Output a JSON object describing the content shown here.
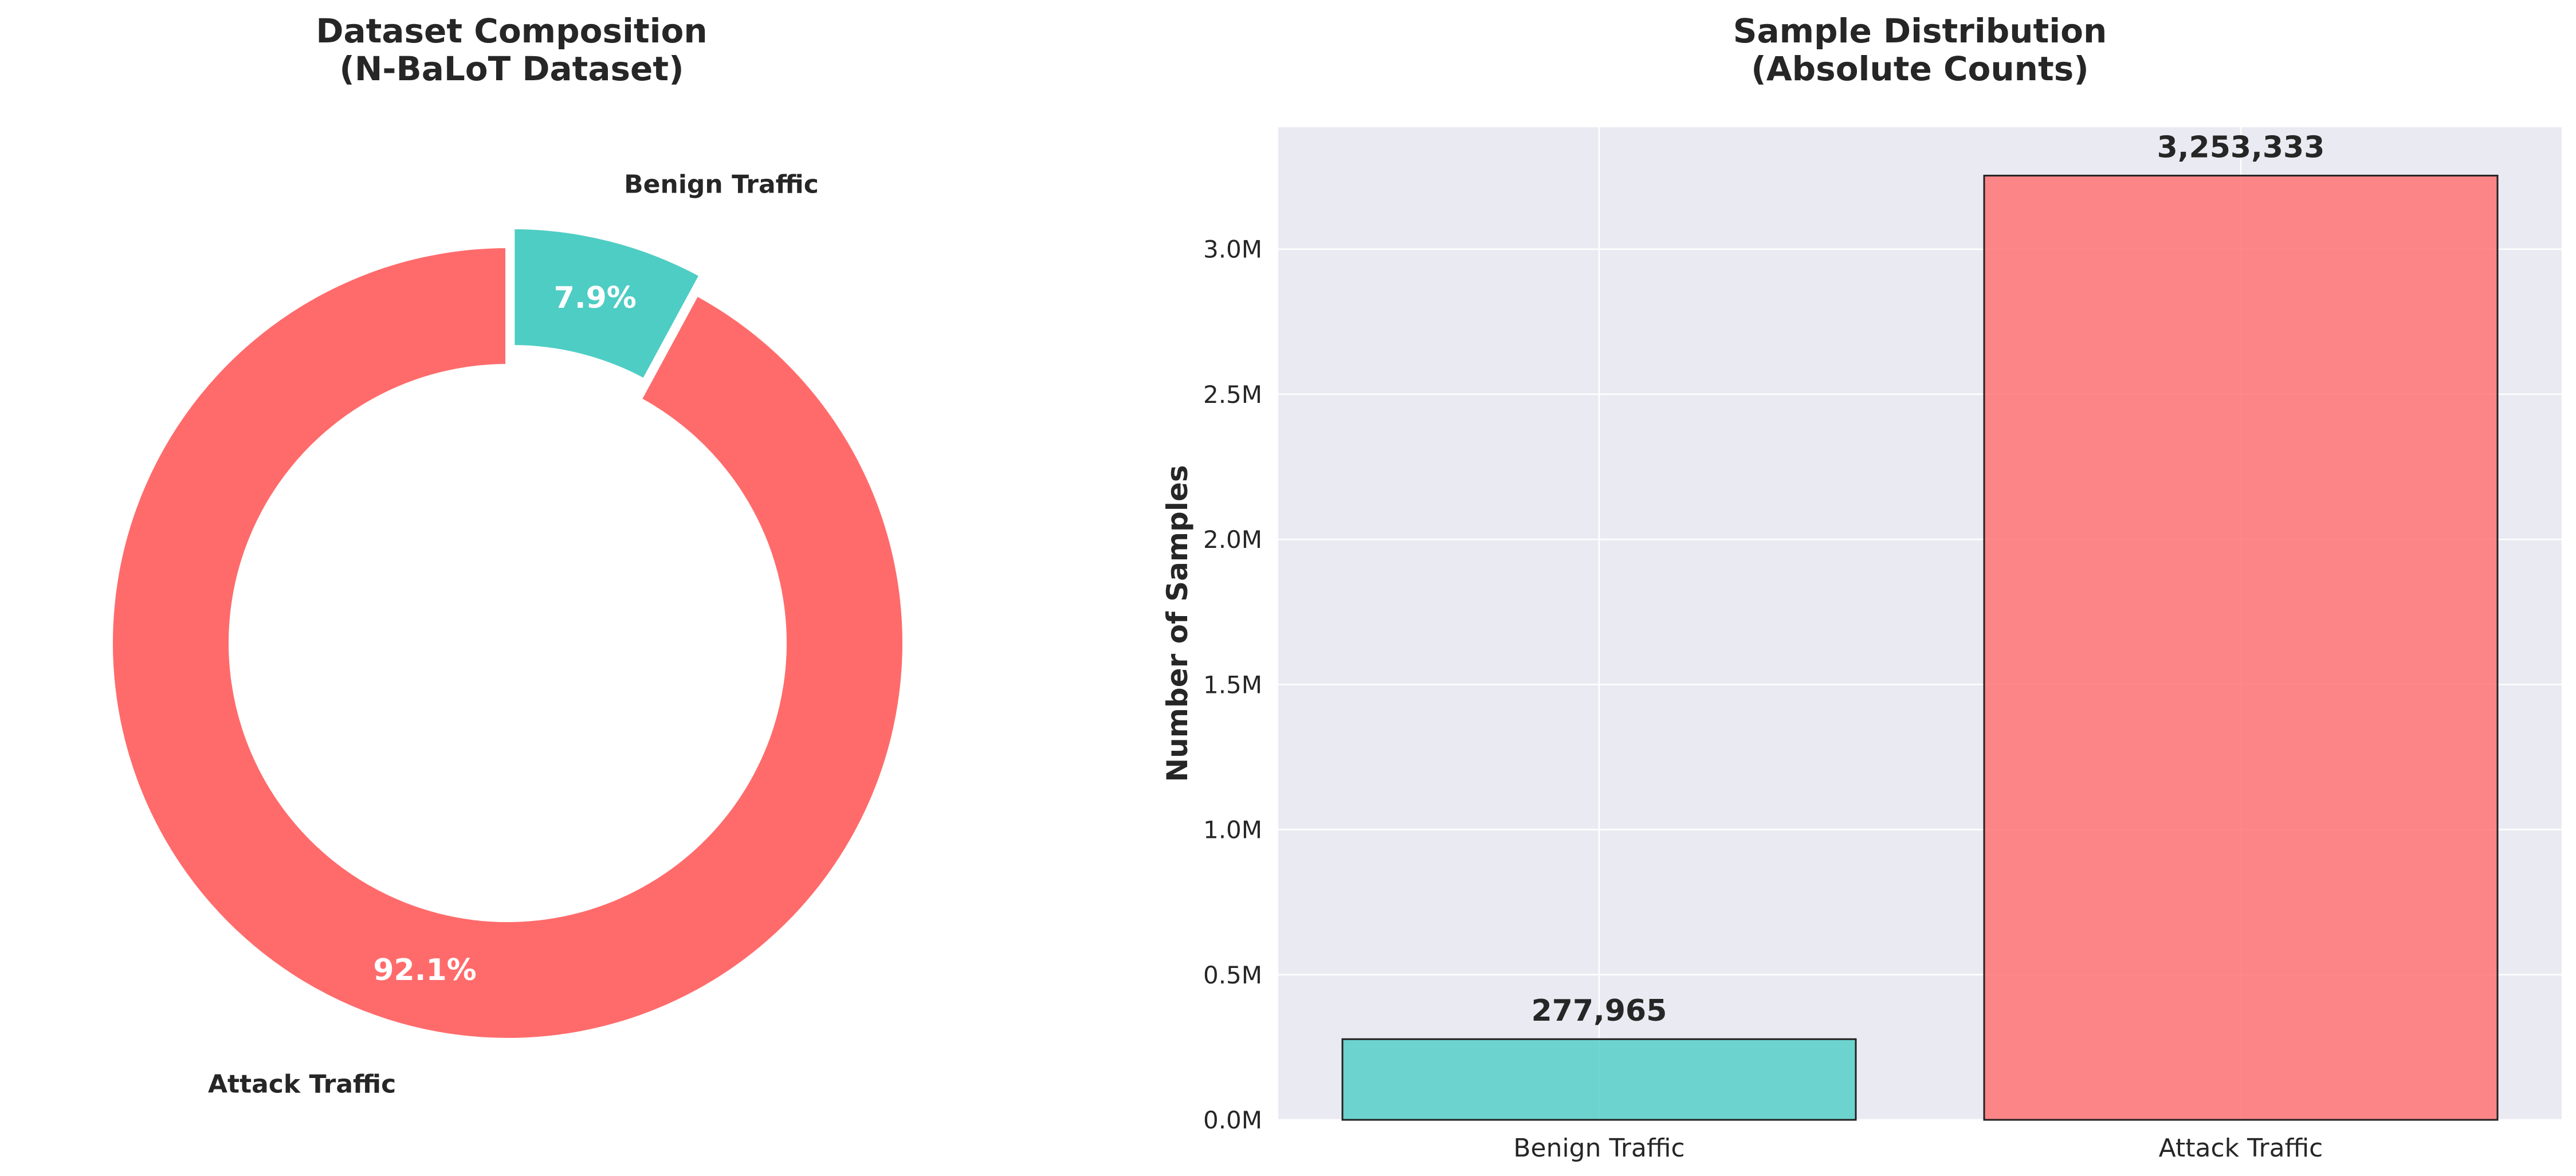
{
  "chart_data": [
    {
      "type": "pie",
      "title": "Dataset Composition\n(N-BaLoT Dataset)",
      "donut": true,
      "labels": [
        "Benign Traffic",
        "Attack Traffic"
      ],
      "values": [
        7.9,
        92.1
      ],
      "pct_labels": [
        "7.9%",
        "92.1%"
      ],
      "colors": [
        "#4ecdc4",
        "#ff6b6b"
      ],
      "exploded": [
        "Benign Traffic"
      ]
    },
    {
      "type": "bar",
      "title": "Sample Distribution\n(Absolute Counts)",
      "categories": [
        "Benign Traffic",
        "Attack Traffic"
      ],
      "values": [
        277965,
        3253333
      ],
      "value_labels": [
        "277,965",
        "3,253,333"
      ],
      "colors": [
        "#4ecdc4",
        "#ff6b6b"
      ],
      "xlabel": "",
      "ylabel": "Number of Samples",
      "ylim": [
        0,
        3420000
      ],
      "yticks": [
        0,
        500000,
        1000000,
        1500000,
        2000000,
        2500000,
        3000000
      ],
      "ytick_labels": [
        "0.0M",
        "0.5M",
        "1.0M",
        "1.5M",
        "2.0M",
        "2.5M",
        "3.0M"
      ],
      "grid": true,
      "background": "#eaeaf2"
    }
  ]
}
